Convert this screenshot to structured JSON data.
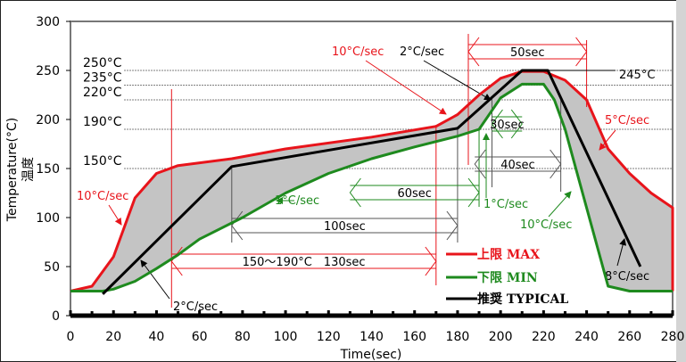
{
  "chart_data": {
    "type": "line",
    "title": "",
    "xlabel": "Time(sec)",
    "ylabel": "Temperature(°C)",
    "ylabel2": "温度",
    "xlim": [
      0,
      280
    ],
    "ylim": [
      0,
      300
    ],
    "xticks": [
      0,
      20,
      40,
      60,
      80,
      100,
      120,
      140,
      160,
      180,
      200,
      220,
      240,
      260,
      280
    ],
    "yticks": [
      0,
      50,
      100,
      150,
      200,
      250,
      300
    ],
    "grid": false,
    "legend_position": "bottom-center",
    "series": [
      {
        "name": "上限 MAX",
        "color": "#e8141b",
        "x": [
          0,
          10,
          20,
          30,
          40,
          50,
          75,
          100,
          140,
          170,
          180,
          190,
          200,
          210,
          220,
          230,
          240,
          250,
          260,
          270,
          280,
          280
        ],
        "y": [
          25,
          30,
          60,
          120,
          145,
          153,
          160,
          170,
          182,
          193,
          205,
          225,
          242,
          249,
          249,
          240,
          220,
          170,
          145,
          125,
          110,
          25
        ]
      },
      {
        "name": "下限 MIN",
        "color": "#1e8a1e",
        "x": [
          0,
          15,
          20,
          30,
          40,
          50,
          60,
          80,
          100,
          120,
          140,
          160,
          180,
          190,
          200,
          210,
          220,
          225,
          230,
          240,
          245,
          250,
          260,
          280
        ],
        "y": [
          25,
          25,
          27,
          35,
          48,
          62,
          78,
          100,
          125,
          145,
          160,
          172,
          183,
          190,
          222,
          236,
          236,
          220,
          190,
          110,
          70,
          30,
          25,
          25
        ]
      },
      {
        "name": "推奨 TYPICAL",
        "color": "#000000",
        "x": [
          15,
          75,
          180,
          210,
          222,
          265
        ],
        "y": [
          22,
          152,
          191,
          250,
          250,
          50
        ]
      }
    ],
    "reference_lines": [
      {
        "value": 250,
        "label": "250°C"
      },
      {
        "value": 235,
        "label": "235°C"
      },
      {
        "value": 220,
        "label": "220°C"
      },
      {
        "value": 190,
        "label": "190°C"
      },
      {
        "value": 150,
        "label": "150°C"
      }
    ],
    "annotations": {
      "peak": "245°C",
      "max_ramp1": "10°C/sec",
      "max_ramp2": "10°C/sec",
      "typ_ramp_reflow": "2°C/sec",
      "typ_ramp_pre": "2°C/sec",
      "max_cool": "5°C/sec",
      "min_pre": "1°C/sec",
      "min_reflow": "1°C/sec",
      "min_cool": "10°C/sec",
      "typ_cool": "8°C/sec",
      "dur_50": "50sec",
      "dur_30": "30sec",
      "dur_40": "40sec",
      "dur_60": "60sec",
      "dur_100": "100sec",
      "dur_130": "150～190°C　130sec"
    }
  }
}
